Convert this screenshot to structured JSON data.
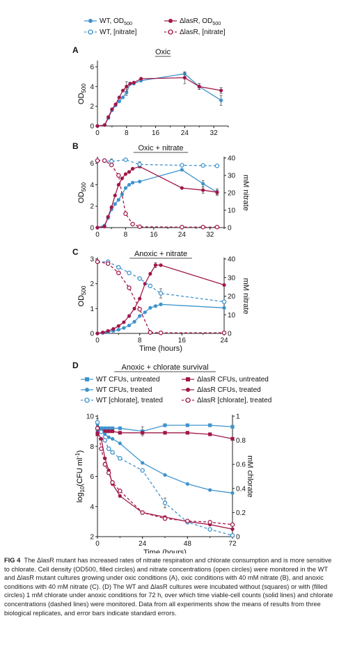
{
  "colors": {
    "wt": "#3e93cd",
    "mut": "#a0174a",
    "axis": "#222222"
  },
  "top_legend": [
    {
      "label": "WT, OD",
      "sub": "500",
      "series_color": "wt",
      "marker": "filled-circle",
      "dash": false
    },
    {
      "label": "ΔlasR, OD",
      "sub": "500",
      "series_color": "mut",
      "marker": "filled-circle",
      "dash": false
    },
    {
      "label": "WT, [nitrate]",
      "sub": "",
      "series_color": "wt",
      "marker": "open-circle",
      "dash": true
    },
    {
      "label": "ΔlasR, [nitrate]",
      "sub": "",
      "series_color": "mut",
      "marker": "open-circle",
      "dash": true
    }
  ],
  "legend_d": [
    {
      "label": "WT CFUs, untreated",
      "series_color": "wt",
      "marker": "square",
      "dash": false
    },
    {
      "label": "ΔlasR CFUs, untreated",
      "series_color": "mut",
      "marker": "square",
      "dash": false
    },
    {
      "label": "WT CFUs, treated",
      "series_color": "wt",
      "marker": "filled-circle",
      "dash": false
    },
    {
      "label": "ΔlasR CFUs, treated",
      "series_color": "mut",
      "marker": "filled-circle",
      "dash": false
    },
    {
      "label": "WT [chlorate], treated",
      "series_color": "wt",
      "marker": "open-circle",
      "dash": true
    },
    {
      "label": "ΔlasR [chlorate], treated",
      "series_color": "mut",
      "marker": "open-circle",
      "dash": true
    }
  ],
  "chart_data": [
    {
      "panel": "A",
      "type": "line",
      "title": "Oxic",
      "xlabel": "",
      "ylabel": "OD",
      "ylabel_sub": "500",
      "xlim": [
        0,
        36
      ],
      "xticks": [
        0,
        8,
        16,
        24,
        32
      ],
      "ylim": [
        0,
        6.5
      ],
      "yticks": [
        0,
        2,
        4,
        6
      ],
      "series": [
        {
          "name": "WT, OD500",
          "color": "wt",
          "marker": "filled-circle",
          "dash": false,
          "x": [
            0,
            2,
            3,
            4,
            5,
            6,
            7,
            8,
            9,
            10,
            12,
            24,
            28,
            34
          ],
          "y": [
            0,
            0.1,
            0.8,
            1.6,
            2.1,
            2.5,
            2.9,
            3.4,
            4.3,
            4.3,
            4.6,
            5.3,
            4.0,
            2.6
          ],
          "err": [
            0,
            0,
            0,
            0,
            0,
            0,
            0,
            0.3,
            0,
            0,
            0,
            0.1,
            0.3,
            0.5
          ]
        },
        {
          "name": "ΔlasR, OD500",
          "color": "mut",
          "marker": "filled-circle",
          "dash": false,
          "x": [
            0,
            2,
            3,
            4,
            5,
            6,
            7,
            8,
            9,
            10,
            12,
            24,
            28,
            34
          ],
          "y": [
            0,
            0.1,
            0.9,
            1.7,
            2.2,
            2.9,
            3.6,
            4.0,
            4.3,
            4.4,
            4.8,
            4.9,
            4.0,
            3.6
          ],
          "err": [
            0,
            0,
            0,
            0,
            0,
            0,
            0,
            0.5,
            0,
            0,
            0,
            0.6,
            0.3,
            0.3
          ]
        }
      ]
    },
    {
      "panel": "B",
      "type": "line",
      "title": "Oxic + nitrate",
      "xlabel": "",
      "ylabel": "OD",
      "ylabel_sub": "500",
      "y2label": "mM nitrate",
      "xlim": [
        0,
        36
      ],
      "xticks": [
        0,
        8,
        16,
        24,
        32
      ],
      "ylim": [
        0,
        6.5
      ],
      "yticks": [
        0,
        2,
        4,
        6
      ],
      "y2lim": [
        0,
        40
      ],
      "y2ticks": [
        0,
        10,
        20,
        30,
        40
      ],
      "series": [
        {
          "name": "WT, OD500",
          "color": "wt",
          "marker": "filled-circle",
          "dash": false,
          "axis": "left",
          "x": [
            0,
            2,
            3,
            4,
            5,
            6,
            7,
            8,
            9,
            10,
            12,
            24,
            30,
            34
          ],
          "y": [
            0,
            0.2,
            0.9,
            1.7,
            2.2,
            2.6,
            3.1,
            3.7,
            4.0,
            4.2,
            4.3,
            5.4,
            4.1,
            3.3
          ],
          "err": [
            0,
            0,
            0,
            0,
            0,
            0,
            0,
            0,
            0,
            0,
            0,
            0,
            0.3,
            0.3
          ]
        },
        {
          "name": "ΔlasR, OD500",
          "color": "mut",
          "marker": "filled-circle",
          "dash": false,
          "axis": "left",
          "x": [
            0,
            2,
            3,
            4,
            5,
            6,
            7,
            8,
            9,
            10,
            12,
            24,
            30,
            34
          ],
          "y": [
            0,
            0.1,
            1.0,
            1.9,
            3.0,
            4.0,
            4.6,
            5.0,
            5.2,
            5.5,
            5.7,
            3.7,
            3.5,
            3.3
          ],
          "err": [
            0,
            0,
            0,
            0,
            0,
            0,
            0,
            0,
            0,
            0,
            0,
            0,
            0.3,
            0.2
          ]
        },
        {
          "name": "WT, [nitrate]",
          "color": "wt",
          "marker": "open-circle",
          "dash": true,
          "axis": "right",
          "x": [
            0,
            2,
            4,
            8,
            12,
            24,
            30,
            34
          ],
          "y": [
            38.5,
            38.5,
            38.0,
            39.0,
            36.3,
            35.8,
            35.7,
            35.5
          ],
          "err": [
            0,
            0,
            1.5,
            0,
            1.5,
            0,
            0,
            0
          ]
        },
        {
          "name": "ΔlasR, [nitrate]",
          "color": "mut",
          "marker": "open-circle",
          "dash": true,
          "axis": "right",
          "x": [
            0,
            2,
            4,
            6,
            8,
            10,
            12,
            24,
            30,
            34
          ],
          "y": [
            38.5,
            38.5,
            36.0,
            30.0,
            8.0,
            2.0,
            0.5,
            0.3,
            0.3,
            0.3
          ],
          "err": [
            0,
            0,
            0,
            0,
            0,
            0,
            0,
            0,
            0,
            0
          ]
        }
      ]
    },
    {
      "panel": "C",
      "type": "line",
      "title": "Anoxic + nitrate",
      "xlabel": "Time (hours)",
      "ylabel": "OD",
      "ylabel_sub": "500",
      "y2label": "mM nitrate",
      "xlim": [
        0,
        24
      ],
      "xticks": [
        0,
        8,
        16,
        24
      ],
      "ylim": [
        0,
        3
      ],
      "yticks": [
        0,
        1,
        2,
        3
      ],
      "y2lim": [
        0,
        40
      ],
      "y2ticks": [
        0,
        10,
        20,
        30,
        40
      ],
      "series": [
        {
          "name": "WT, OD500",
          "color": "wt",
          "marker": "filled-circle",
          "dash": false,
          "axis": "left",
          "x": [
            0,
            1,
            2,
            3,
            4,
            5,
            6,
            7,
            8,
            9,
            10,
            11,
            12,
            24
          ],
          "y": [
            0,
            0.02,
            0.05,
            0.1,
            0.15,
            0.22,
            0.32,
            0.47,
            0.7,
            0.85,
            1.03,
            1.1,
            1.17,
            1.03
          ],
          "err": [
            0,
            0,
            0,
            0,
            0,
            0,
            0,
            0,
            0,
            0,
            0,
            0,
            0,
            0
          ]
        },
        {
          "name": "ΔlasR, OD500",
          "color": "mut",
          "marker": "filled-circle",
          "dash": false,
          "axis": "left",
          "x": [
            0,
            1,
            2,
            3,
            4,
            5,
            6,
            7,
            8,
            9,
            10,
            11,
            12,
            24
          ],
          "y": [
            0,
            0.04,
            0.1,
            0.18,
            0.3,
            0.45,
            0.7,
            1.0,
            1.4,
            2.0,
            2.4,
            2.75,
            2.75,
            1.95
          ],
          "err": [
            0,
            0,
            0,
            0,
            0,
            0,
            0,
            0,
            0,
            0,
            0,
            0.1,
            0,
            0
          ]
        },
        {
          "name": "WT, [nitrate]",
          "color": "wt",
          "marker": "open-circle",
          "dash": true,
          "axis": "right",
          "x": [
            0,
            2,
            4,
            6,
            8,
            10,
            12,
            24
          ],
          "y": [
            38.5,
            38.5,
            35.5,
            32.5,
            29.5,
            25.5,
            21.5,
            17.0
          ],
          "err": [
            0,
            0,
            0,
            0,
            0,
            0,
            2.5,
            0
          ]
        },
        {
          "name": "ΔlasR, [nitrate]",
          "color": "mut",
          "marker": "open-circle",
          "dash": true,
          "axis": "right",
          "x": [
            0,
            2,
            4,
            6,
            8,
            10,
            12,
            24
          ],
          "y": [
            38.5,
            37.5,
            32.5,
            24.5,
            13.0,
            0.5,
            0.3,
            0.3
          ],
          "err": [
            0,
            0,
            0,
            0,
            0,
            0,
            0,
            0
          ]
        }
      ]
    },
    {
      "panel": "D",
      "type": "line",
      "title": "Anoxic + chlorate survival",
      "xlabel": "Time (hours)",
      "ylabel": "log10(CFU ml-1)",
      "y2label": "mM chlorate",
      "xlim": [
        0,
        72
      ],
      "xticks": [
        0,
        24,
        48,
        72
      ],
      "ylim": [
        2,
        10
      ],
      "yticks": [
        2,
        4,
        6,
        8,
        10
      ],
      "y2lim": [
        0,
        1
      ],
      "y2ticks": [
        0,
        0.2,
        0.4,
        0.6,
        0.8,
        1
      ],
      "series": [
        {
          "name": "WT CFUs, untreated",
          "color": "wt",
          "marker": "square",
          "dash": false,
          "axis": "left",
          "x": [
            0,
            2,
            4,
            6,
            8,
            12,
            24,
            36,
            48,
            60,
            72
          ],
          "y": [
            9.1,
            9.2,
            9.2,
            9.2,
            9.2,
            9.2,
            9.0,
            9.4,
            9.4,
            9.4,
            9.3
          ],
          "err": [
            0.3,
            0,
            0,
            0,
            0,
            0,
            0.3,
            0,
            0,
            0,
            0
          ]
        },
        {
          "name": "ΔlasR CFUs, untreated",
          "color": "mut",
          "marker": "square",
          "dash": false,
          "axis": "left",
          "x": [
            0,
            2,
            4,
            6,
            8,
            12,
            24,
            36,
            48,
            60,
            72
          ],
          "y": [
            8.8,
            9.0,
            9.0,
            9.0,
            9.0,
            8.9,
            8.9,
            8.9,
            8.9,
            8.8,
            8.5
          ],
          "err": [
            0,
            0,
            0,
            0,
            0,
            0,
            0,
            0,
            0,
            0,
            0
          ]
        },
        {
          "name": "WT CFUs, treated",
          "color": "wt",
          "marker": "filled-circle",
          "dash": false,
          "axis": "left",
          "x": [
            0,
            2,
            4,
            6,
            8,
            12,
            24,
            36,
            48,
            60,
            72
          ],
          "y": [
            9.5,
            9.0,
            8.8,
            8.6,
            8.5,
            8.2,
            6.9,
            6.1,
            5.5,
            5.1,
            4.9
          ],
          "err": [
            0,
            0,
            0,
            0,
            0,
            0,
            0,
            0,
            0,
            0,
            0
          ]
        },
        {
          "name": "ΔlasR CFUs, treated",
          "color": "mut",
          "marker": "filled-circle",
          "dash": false,
          "axis": "left",
          "x": [
            0,
            2,
            4,
            6,
            8,
            12,
            24,
            36,
            48,
            60,
            72
          ],
          "y": [
            8.9,
            8.5,
            7.2,
            6.4,
            5.5,
            4.7,
            3.6,
            3.3,
            3.0,
            2.8,
            2.5
          ],
          "err": [
            0,
            0,
            0,
            0,
            0,
            0,
            0,
            0,
            0,
            0,
            0
          ]
        },
        {
          "name": "WT [chlorate], treated",
          "color": "wt",
          "marker": "open-circle",
          "dash": true,
          "axis": "right",
          "x": [
            0,
            2,
            4,
            6,
            8,
            12,
            24,
            36,
            48,
            60,
            72
          ],
          "y": [
            0.95,
            0.87,
            0.8,
            0.73,
            0.7,
            0.65,
            0.55,
            0.28,
            0.12,
            0.06,
            0.01
          ],
          "err": [
            0.03,
            0,
            0,
            0,
            0,
            0,
            0,
            0.04,
            0,
            0,
            0
          ]
        },
        {
          "name": "ΔlasR [chlorate], treated",
          "color": "mut",
          "marker": "open-circle",
          "dash": true,
          "axis": "right",
          "x": [
            0,
            2,
            4,
            6,
            8,
            12,
            24,
            36,
            48,
            60,
            72
          ],
          "y": [
            0.9,
            0.73,
            0.6,
            0.53,
            0.45,
            0.38,
            0.2,
            0.15,
            0.13,
            0.12,
            0.1
          ],
          "err": [
            0,
            0,
            0,
            0,
            0,
            0,
            0,
            0,
            0,
            0,
            0
          ]
        }
      ]
    }
  ],
  "caption": {
    "fig_label": "FIG 4",
    "text": "The ΔlasR mutant has increased rates of nitrate respiration and chlorate consumption and is more sensitive to chlorate. Cell density (OD500, filled circles) and nitrate concentrations (open circles) were monitored in the WT and ΔlasR mutant cultures growing under oxic conditions (A), oxic conditions with 40 mM nitrate (B), and anoxic conditions with 40 mM nitrate (C). (D) The WT and ΔlasR cultures were incubated without (squares) or with (filled circles) 1 mM chlorate under anoxic conditions for 72 h, over which time viable-cell counts (solid lines) and chlorate concentrations (dashed lines) were monitored. Data from all experiments show the means of results from three biological replicates, and error bars indicate standard errors."
  }
}
